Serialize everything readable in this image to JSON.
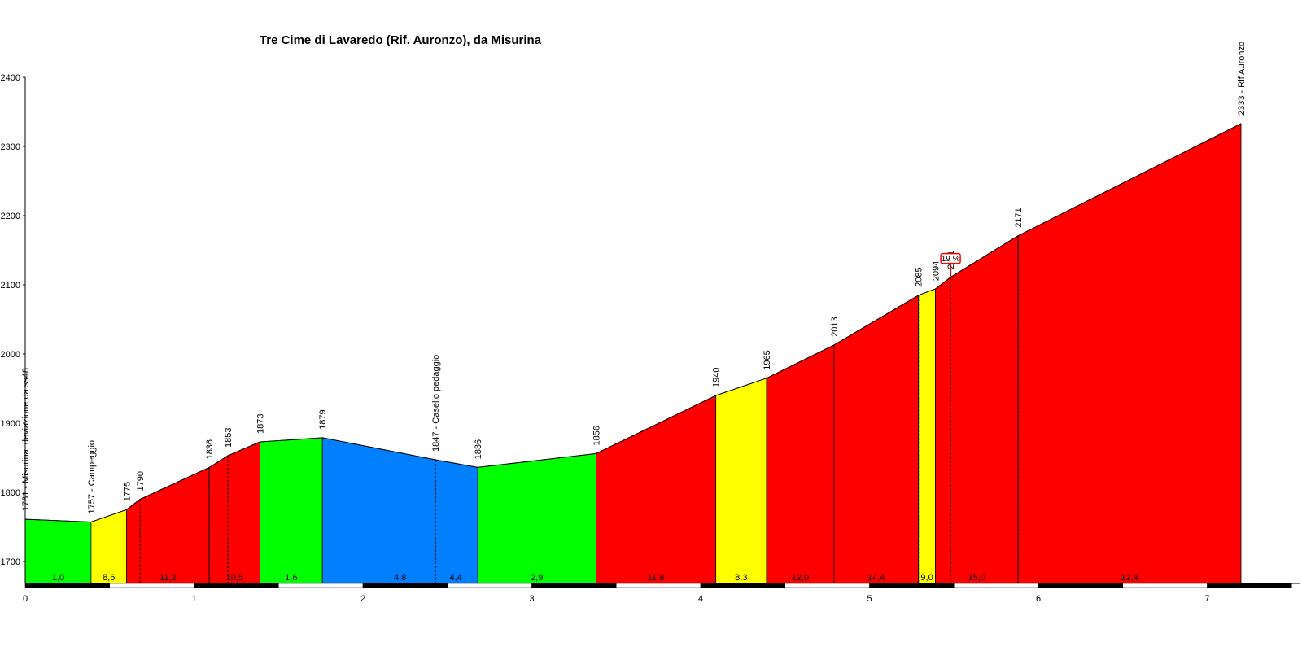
{
  "chart_data": {
    "type": "area",
    "title": "Tre Cime di Lavaredo (Rif. Auronzo), da Misurina",
    "xlabel": "",
    "ylabel": "",
    "xlim": [
      0,
      7.55
    ],
    "ylim": [
      1665,
      2400
    ],
    "x_ticks": [
      0,
      1,
      2,
      3,
      4,
      5,
      6,
      7
    ],
    "y_ticks": [
      1700,
      1800,
      1900,
      2000,
      2100,
      2200,
      2300,
      2400
    ],
    "profile": [
      {
        "x": 0.0,
        "y": 1761
      },
      {
        "x": 0.39,
        "y": 1757
      },
      {
        "x": 0.6,
        "y": 1775
      },
      {
        "x": 0.68,
        "y": 1790
      },
      {
        "x": 1.09,
        "y": 1836
      },
      {
        "x": 1.2,
        "y": 1853
      },
      {
        "x": 1.39,
        "y": 1873
      },
      {
        "x": 1.76,
        "y": 1879
      },
      {
        "x": 2.43,
        "y": 1847
      },
      {
        "x": 2.68,
        "y": 1836
      },
      {
        "x": 3.38,
        "y": 1856
      },
      {
        "x": 4.09,
        "y": 1940
      },
      {
        "x": 4.39,
        "y": 1965
      },
      {
        "x": 4.79,
        "y": 2013
      },
      {
        "x": 5.29,
        "y": 2085
      },
      {
        "x": 5.39,
        "y": 2094
      },
      {
        "x": 5.48,
        "y": 2111
      },
      {
        "x": 5.88,
        "y": 2171
      },
      {
        "x": 7.2,
        "y": 2333
      }
    ],
    "segments": [
      {
        "x0": 0.0,
        "x1": 0.39,
        "gradient": "1,0",
        "color": "#00ff00"
      },
      {
        "x0": 0.39,
        "x1": 0.6,
        "gradient": "8,6",
        "color": "#ffff00"
      },
      {
        "x0": 0.6,
        "x1": 1.09,
        "gradient": "11,2",
        "color": "#ff0000"
      },
      {
        "x0": 1.09,
        "x1": 1.39,
        "gradient": "10,5",
        "color": "#ff0000"
      },
      {
        "x0": 1.39,
        "x1": 1.76,
        "gradient": "1,6",
        "color": "#00ff00"
      },
      {
        "x0": 1.76,
        "x1": 2.68,
        "gradient": "4,8",
        "color": "#0080ff"
      },
      {
        "x0": 2.68,
        "x1": 3.38,
        "gradient": "2,9",
        "color": "#00ff00"
      },
      {
        "x0": 3.38,
        "x1": 4.09,
        "gradient": "11,8",
        "color": "#ff0000"
      },
      {
        "x0": 4.09,
        "x1": 4.39,
        "gradient": "8,3",
        "color": "#ffff00"
      },
      {
        "x0": 4.39,
        "x1": 4.79,
        "gradient": "12,0",
        "color": "#ff0000"
      },
      {
        "x0": 4.79,
        "x1": 5.29,
        "gradient": "14,4",
        "color": "#ff0000"
      },
      {
        "x0": 5.29,
        "x1": 5.39,
        "gradient": "9,0",
        "color": "#ffff00"
      },
      {
        "x0": 5.39,
        "x1": 5.88,
        "gradient": "15,0",
        "color": "#ff0000"
      },
      {
        "x0": 5.88,
        "x1": 7.2,
        "gradient": "12,4",
        "color": "#ff0000"
      }
    ],
    "inner_gradient_labels": [
      {
        "x": 2.55,
        "gradient": "4,4"
      }
    ],
    "dashed_markers": [
      0.68,
      1.09,
      1.2,
      2.43,
      5.29,
      5.48,
      5.88
    ],
    "point_labels": [
      {
        "x": 0.0,
        "y": 1761,
        "text": "1761 - Misurina, deviazione da ss48"
      },
      {
        "x": 0.39,
        "y": 1757,
        "text": "1757 - Campeggio"
      },
      {
        "x": 0.6,
        "y": 1775,
        "text": "1775"
      },
      {
        "x": 0.68,
        "y": 1790,
        "text": "1790"
      },
      {
        "x": 1.09,
        "y": 1836,
        "text": "1836"
      },
      {
        "x": 1.2,
        "y": 1853,
        "text": "1853"
      },
      {
        "x": 1.39,
        "y": 1873,
        "text": "1873"
      },
      {
        "x": 1.76,
        "y": 1879,
        "text": "1879"
      },
      {
        "x": 2.43,
        "y": 1847,
        "text": "1847 - Casello pedaggio"
      },
      {
        "x": 2.68,
        "y": 1836,
        "text": "1836"
      },
      {
        "x": 3.38,
        "y": 1856,
        "text": "1856"
      },
      {
        "x": 4.09,
        "y": 1940,
        "text": "1940"
      },
      {
        "x": 4.39,
        "y": 1965,
        "text": "1965"
      },
      {
        "x": 4.79,
        "y": 2013,
        "text": "2013"
      },
      {
        "x": 5.29,
        "y": 2085,
        "text": "2085"
      },
      {
        "x": 5.39,
        "y": 2094,
        "text": "2094"
      },
      {
        "x": 5.48,
        "y": 2111,
        "text": "2111"
      },
      {
        "x": 5.88,
        "y": 2171,
        "text": "2171"
      },
      {
        "x": 7.2,
        "y": 2333,
        "text": "2333 - Rif Auronzo"
      }
    ],
    "max_gradient": {
      "x": 5.48,
      "y": 2111,
      "text": "19 %"
    },
    "grid": false,
    "legend": "none"
  }
}
